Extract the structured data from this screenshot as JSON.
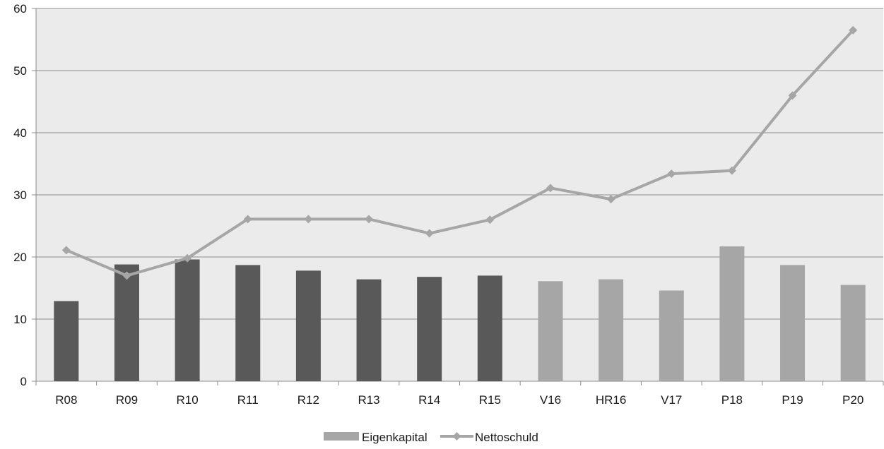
{
  "chart_data": {
    "type": "bar",
    "categories": [
      "R08",
      "R09",
      "R10",
      "R11",
      "R12",
      "R13",
      "R14",
      "R15",
      "V16",
      "HR16",
      "V17",
      "P18",
      "P19",
      "P20"
    ],
    "series": [
      {
        "name": "Eigenkapital",
        "kind": "bar",
        "values": [
          12.9,
          18.8,
          19.6,
          18.7,
          17.8,
          16.4,
          16.8,
          17.0,
          16.1,
          16.4,
          14.6,
          21.7,
          18.7,
          15.5
        ],
        "colors": [
          "#595959",
          "#595959",
          "#595959",
          "#595959",
          "#595959",
          "#595959",
          "#595959",
          "#595959",
          "#a6a6a6",
          "#a6a6a6",
          "#a6a6a6",
          "#a6a6a6",
          "#a6a6a6",
          "#a6a6a6"
        ]
      },
      {
        "name": "Nettoschuld",
        "kind": "line",
        "marker": "diamond",
        "color": "#a6a6a6",
        "values": [
          21.1,
          17.0,
          19.8,
          26.1,
          26.1,
          26.1,
          23.8,
          26.0,
          31.1,
          29.3,
          33.4,
          33.9,
          46.0,
          56.5
        ]
      }
    ],
    "ylim": [
      0,
      60
    ],
    "yticks": [
      "0",
      "10",
      "20",
      "30",
      "40",
      "50",
      "60"
    ],
    "grid": true,
    "plot_background": "#ebebeb",
    "legend": {
      "position": "bottom",
      "items": [
        "Eigenkapital",
        "Nettoschuld"
      ]
    }
  }
}
